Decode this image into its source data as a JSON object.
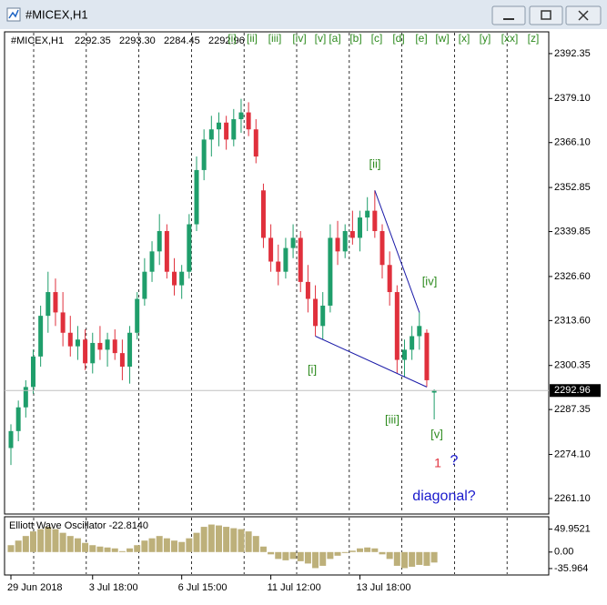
{
  "window_title": "#MICEX,H1",
  "wave_buttons": [
    "[i]",
    "[ii]",
    "[iii]",
    "[iv]",
    "[v]",
    "[a]",
    "[b]",
    "[c]",
    "[d]",
    "[e]",
    "[w]",
    "[x]",
    "[y]",
    "[xx]",
    "[z]"
  ],
  "annotations": {
    "ii": "[ii]",
    "iv": "[iv]",
    "i": "[i]",
    "iii": "[iii]",
    "v": "[v]",
    "one": "1",
    "question": "?",
    "diagonal": "diagonal?"
  },
  "chart_data": [
    {
      "type": "candlestick",
      "title": "#MICEX,H1",
      "last_bar_labels": [
        "2292.35",
        "2293.30",
        "2284.45",
        "2292.96"
      ],
      "categories": [
        "29 Jun 2018",
        null,
        null,
        null,
        null,
        null,
        null,
        null,
        null,
        null,
        null,
        "3 Jul 18:00",
        null,
        null,
        null,
        null,
        null,
        null,
        null,
        null,
        null,
        null,
        null,
        "6 Jul 15:00",
        null,
        null,
        null,
        null,
        null,
        null,
        null,
        null,
        null,
        null,
        null,
        "11 Jul 12:00",
        null,
        null,
        null,
        null,
        null,
        null,
        null,
        null,
        null,
        null,
        null,
        "13 Jul 18:00",
        null,
        null,
        null,
        null,
        null,
        null,
        null,
        null,
        null,
        null
      ],
      "open": [
        2276,
        2281,
        2288,
        2294,
        2303,
        2315,
        2322,
        2316,
        2310,
        2306,
        2308,
        2301,
        2307,
        2305,
        2308,
        2304,
        2300,
        2310,
        2320,
        2328,
        2334,
        2340,
        2328,
        2324,
        2328,
        2342,
        2358,
        2367,
        2370,
        2372,
        2367,
        2373,
        2375,
        2370,
        2352,
        2338,
        2331,
        2328,
        2335,
        2338,
        2325,
        2320,
        2312,
        2318,
        2338,
        2334,
        2340,
        2338,
        2344,
        2346,
        2340,
        2330,
        2322,
        2302,
        2305,
        2309,
        2310,
        2292.35
      ],
      "high": [
        2283,
        2290,
        2296,
        2305,
        2318,
        2328,
        2326,
        2322,
        2315,
        2312,
        2311,
        2310,
        2312,
        2310,
        2311,
        2308,
        2312,
        2322,
        2332,
        2337,
        2345,
        2342,
        2332,
        2330,
        2345,
        2362,
        2370,
        2374,
        2375,
        2374,
        2376,
        2379,
        2378,
        2373,
        2354,
        2342,
        2336,
        2338,
        2342,
        2340,
        2330,
        2324,
        2322,
        2342,
        2343,
        2342,
        2346,
        2346,
        2350,
        2352,
        2342,
        2334,
        2324,
        2308,
        2312,
        2316,
        2311,
        2293.3
      ],
      "low": [
        2271,
        2278,
        2285,
        2292,
        2300,
        2310,
        2312,
        2306,
        2303,
        2302,
        2299,
        2298,
        2302,
        2300,
        2302,
        2296,
        2295,
        2308,
        2318,
        2325,
        2330,
        2326,
        2321,
        2320,
        2326,
        2340,
        2355,
        2362,
        2365,
        2364,
        2365,
        2369,
        2368,
        2360,
        2335,
        2328,
        2324,
        2326,
        2332,
        2322,
        2316,
        2309,
        2308,
        2316,
        2330,
        2332,
        2336,
        2334,
        2340,
        2338,
        2326,
        2318,
        2298,
        2297,
        2302,
        2305,
        2294,
        2284.45
      ],
      "close": [
        2281,
        2288,
        2294,
        2303,
        2315,
        2322,
        2316,
        2310,
        2306,
        2308,
        2301,
        2307,
        2305,
        2308,
        2304,
        2300,
        2310,
        2320,
        2328,
        2334,
        2340,
        2328,
        2324,
        2328,
        2342,
        2358,
        2367,
        2370,
        2372,
        2367,
        2373,
        2375,
        2370,
        2362,
        2338,
        2331,
        2328,
        2335,
        2338,
        2325,
        2320,
        2312,
        2318,
        2338,
        2334,
        2340,
        2338,
        2344,
        2346,
        2340,
        2330,
        2322,
        2302,
        2305,
        2309,
        2312,
        2296,
        2292.96
      ],
      "up_color": "#1f9e6b",
      "down_color": "#e0303c",
      "ylim": [
        2256.8,
        2398.5
      ],
      "yticks": [
        2392.35,
        {
          "value": 2379.1,
          "label": "2379.10"
        },
        {
          "value": 2366.1,
          "label": "2366.10"
        },
        2352.85,
        2339.85,
        {
          "value": 2326.6,
          "label": "2326.60"
        },
        {
          "value": 2313.6,
          "label": "2313.60"
        },
        2300.35,
        2287.35,
        {
          "value": 2274.1,
          "label": "2274.10"
        },
        {
          "value": 2261.1,
          "label": "2261.10"
        }
      ]
    },
    {
      "type": "bar",
      "title": "Elliott Wave Oscillator -22.8140",
      "color": "#bdb07a",
      "values": [
        15,
        25,
        35,
        45,
        50,
        55,
        50,
        42,
        35,
        30,
        20,
        15,
        12,
        10,
        8,
        2,
        8,
        15,
        25,
        30,
        35,
        30,
        25,
        22,
        30,
        42,
        55,
        60,
        58,
        55,
        52,
        50,
        45,
        35,
        12,
        -5,
        -15,
        -18,
        -15,
        -20,
        -25,
        -35,
        -30,
        -15,
        -8,
        -2,
        3,
        8,
        10,
        8,
        -5,
        -15,
        -30,
        -35,
        -32,
        -28,
        -30,
        -22.814
      ],
      "ylim": [
        -48,
        75
      ],
      "yticks": [
        49.9521,
        {
          "value": 0,
          "label": "0.00"
        },
        -35.964
      ]
    }
  ]
}
